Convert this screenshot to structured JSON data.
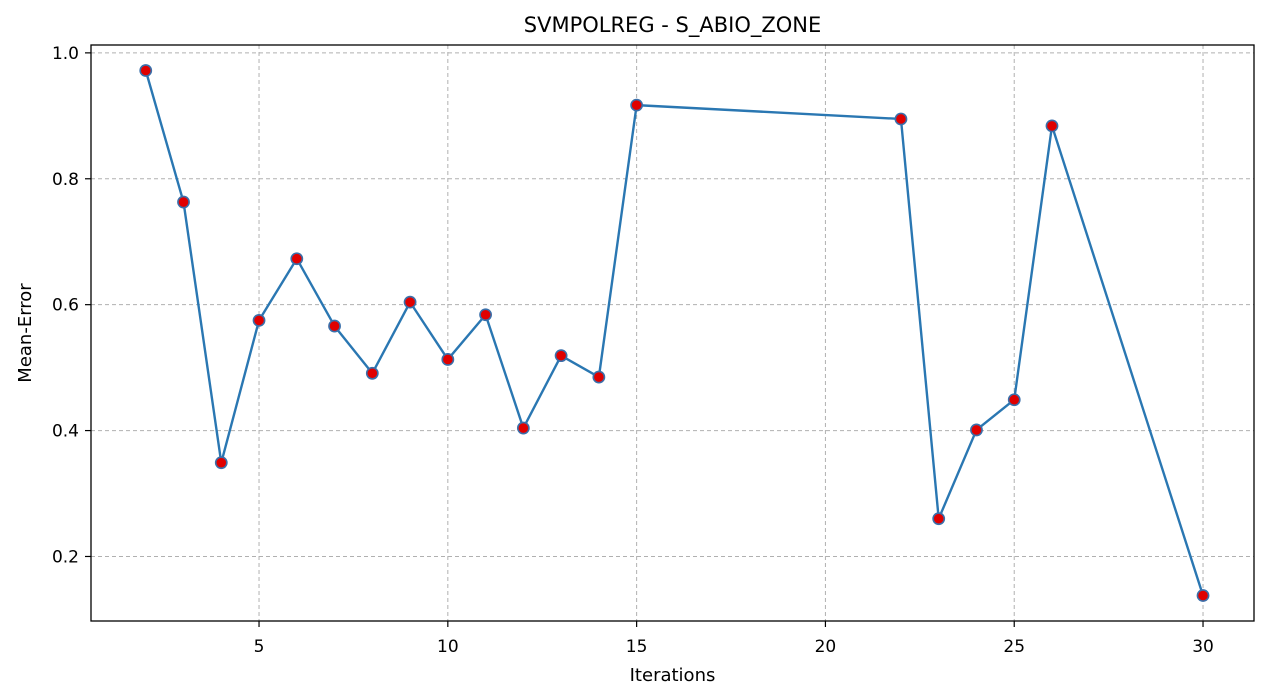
{
  "chart_data": {
    "type": "line",
    "title": "SVMPOLREG - S_ABIO_ZONE",
    "xlabel": "Iterations",
    "ylabel": "Mean-Error",
    "xlim": [
      0.55,
      31.35
    ],
    "ylim": [
      0.0975,
      1.0125
    ],
    "xticks": [
      5,
      10,
      15,
      20,
      25,
      30
    ],
    "yticks": [
      0.2,
      0.4,
      0.6,
      0.8,
      1.0
    ],
    "ytick_labels": [
      "0.2",
      "0.4",
      "0.6",
      "0.8",
      "1.0"
    ],
    "grid": true,
    "series": [
      {
        "x": [
          2,
          3,
          4,
          5,
          6,
          7,
          8,
          9,
          10,
          11,
          12,
          13,
          14,
          15,
          22,
          23,
          24,
          25,
          26,
          30
        ],
        "y": [
          0.972,
          0.763,
          0.349,
          0.575,
          0.673,
          0.566,
          0.491,
          0.604,
          0.513,
          0.584,
          0.404,
          0.519,
          0.485,
          0.917,
          0.895,
          0.26,
          0.401,
          0.449,
          0.884,
          0.138
        ],
        "line_color": "#2a77b2",
        "marker_color": "#e00000",
        "marker_edge_color": "#3a6faa"
      }
    ]
  }
}
